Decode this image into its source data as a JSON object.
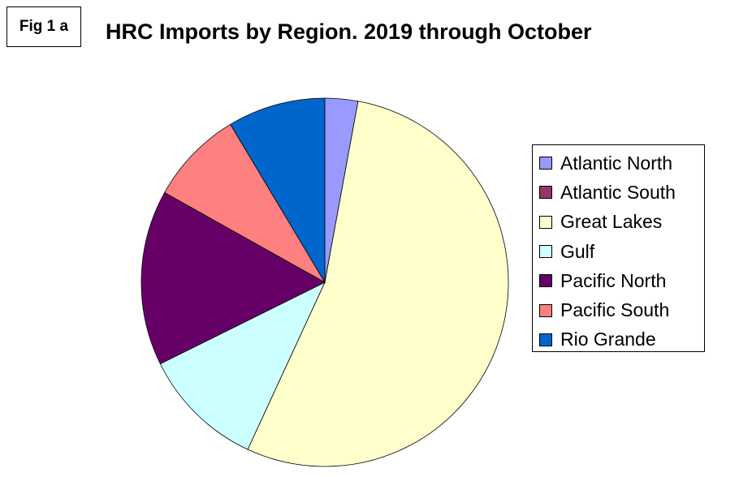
{
  "figure_label": "Fig 1 a",
  "chart_data": {
    "type": "pie",
    "title": "HRC Imports by Region. 2019 through October",
    "legend_position": "right",
    "slices": [
      {
        "name": "Atlantic North",
        "value": 2.9,
        "color": "#9999ff"
      },
      {
        "name": "Atlantic South",
        "value": 0.0,
        "color": "#993366"
      },
      {
        "name": "Great Lakes",
        "value": 54.0,
        "color": "#ffffcc"
      },
      {
        "name": "Gulf",
        "value": 10.8,
        "color": "#ccffff"
      },
      {
        "name": "Pacific North",
        "value": 15.4,
        "color": "#660066"
      },
      {
        "name": "Pacific South",
        "value": 8.3,
        "color": "#ff8080"
      },
      {
        "name": "Rio Grande",
        "value": 8.6,
        "color": "#0066cc"
      }
    ]
  }
}
